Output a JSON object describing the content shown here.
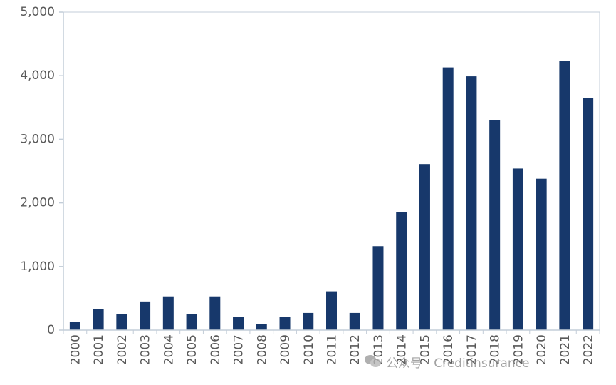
{
  "chart_data": {
    "type": "bar",
    "title": "",
    "xlabel": "",
    "ylabel": "",
    "categories": [
      "2000",
      "2001",
      "2002",
      "2003",
      "2004",
      "2005",
      "2006",
      "2007",
      "2008",
      "2009",
      "2010",
      "2011",
      "2012",
      "2013",
      "2014",
      "2015",
      "2016",
      "2017",
      "2018",
      "2019",
      "2020",
      "2021",
      "2022"
    ],
    "values": [
      130,
      330,
      250,
      450,
      530,
      250,
      530,
      210,
      90,
      210,
      270,
      610,
      270,
      1320,
      1850,
      2610,
      4130,
      3990,
      3300,
      2540,
      2380,
      4230,
      3650
    ],
    "ylim": [
      0,
      5000
    ],
    "yticks": [
      "0",
      "1,000",
      "2,000",
      "3,000",
      "4,000",
      "5,000"
    ],
    "ytick_values": [
      0,
      1000,
      2000,
      3000,
      4000,
      5000
    ],
    "grid": false,
    "legend": "none",
    "bar_color": "#17386B",
    "axis_color": "#C3CDD8"
  },
  "watermark": {
    "text": "公众号 · Creditinsurance",
    "icon": "wechat-icon"
  }
}
